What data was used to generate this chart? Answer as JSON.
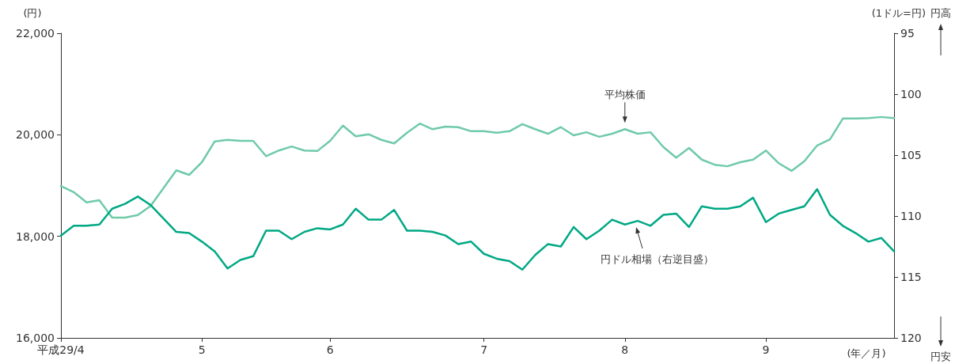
{
  "chart_data": {
    "type": "line",
    "ylabel": "(円)",
    "y2label": "(1ドル=円)",
    "xlabel": "(年／月)",
    "categories": [
      "平成29/4",
      null,
      null,
      null,
      null,
      null,
      null,
      null,
      null,
      null,
      null,
      "5",
      null,
      null,
      null,
      null,
      null,
      null,
      null,
      null,
      null,
      "6",
      null,
      null,
      null,
      null,
      null,
      null,
      null,
      null,
      null,
      null,
      null,
      "7",
      null,
      null,
      null,
      null,
      null,
      null,
      null,
      null,
      null,
      null,
      "8",
      null,
      null,
      null,
      null,
      null,
      null,
      null,
      null,
      null,
      null,
      "9",
      null,
      null,
      null,
      null,
      null,
      null,
      null,
      null,
      null,
      null
    ],
    "ylim": [
      16000,
      22000
    ],
    "yticks": [
      {
        "value": 16000,
        "label": "16,000"
      },
      {
        "value": 18000,
        "label": "18,000"
      },
      {
        "value": 20000,
        "label": "20,000"
      },
      {
        "value": 22000,
        "label": "22,000"
      }
    ],
    "y2lim": [
      120,
      95
    ],
    "y2ticks": [
      95,
      100,
      105,
      110,
      115,
      120
    ],
    "grid": false,
    "marker": "none",
    "line_style": "solid",
    "series": [
      {
        "color": "#6fcaa9",
        "values": [
          18990,
          18870,
          18670,
          18710,
          18370,
          18370,
          18420,
          18600,
          18950,
          19300,
          19210,
          19460,
          19870,
          19900,
          19880,
          19880,
          19580,
          19690,
          19770,
          19690,
          19680,
          19880,
          20180,
          19970,
          20010,
          19900,
          19830,
          20040,
          20220,
          20110,
          20160,
          20150,
          20070,
          20070,
          20040,
          20070,
          20210,
          20110,
          20020,
          20150,
          19990,
          20050,
          19960,
          20020,
          20110,
          20020,
          20050,
          19760,
          19550,
          19740,
          19510,
          19410,
          19380,
          19460,
          19510,
          19690,
          19440,
          19290,
          19480,
          19790,
          19910,
          20320,
          20320,
          20330,
          20350,
          20330
        ]
      },
      {
        "color": "#00a884",
        "axis": "y2",
        "values": [
          111.6,
          110.8,
          110.8,
          110.7,
          109.4,
          109.0,
          108.4,
          109.1,
          110.2,
          111.3,
          111.4,
          112.1,
          112.9,
          114.3,
          113.6,
          113.3,
          111.2,
          111.2,
          111.9,
          111.3,
          111.0,
          111.1,
          110.7,
          109.4,
          110.3,
          110.3,
          109.5,
          111.2,
          111.2,
          111.3,
          111.6,
          112.3,
          112.1,
          113.1,
          113.5,
          113.7,
          114.4,
          113.2,
          112.3,
          112.5,
          110.9,
          111.9,
          111.2,
          110.3,
          110.7,
          110.4,
          110.8,
          109.9,
          109.8,
          110.9,
          109.2,
          109.4,
          109.4,
          109.2,
          108.5,
          110.5,
          109.8,
          109.5,
          109.2,
          107.8,
          109.9,
          110.8,
          111.4,
          112.1,
          111.8,
          112.9
        ]
      }
    ],
    "annotations": [
      {
        "text": "平均株価",
        "x": "8",
        "y": 20110
      },
      "円ドル相場（右逆目盛）",
      "円高",
      "円安"
    ]
  }
}
